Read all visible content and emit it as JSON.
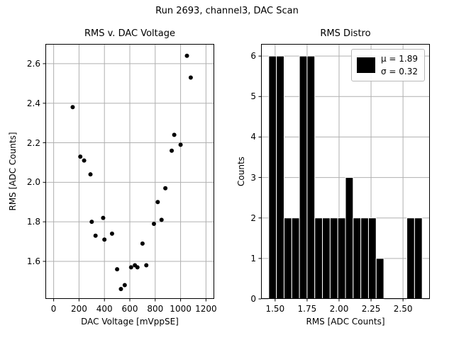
{
  "suptitle": "Run 2693, channel3, DAC Scan",
  "chart_data": [
    {
      "name": "rms-vs-dac",
      "type": "scatter",
      "title": "RMS v. DAC Voltage",
      "xlabel": "DAC Voltage [mVppSE]",
      "ylabel": "RMS [ADC Counts]",
      "xlim": [
        -65,
        1265
      ],
      "ylim": [
        1.41,
        2.7
      ],
      "xtick_values": [
        0,
        200,
        400,
        600,
        800,
        1000,
        1200
      ],
      "xtick_labels": [
        "0",
        "200",
        "400",
        "600",
        "800",
        "1000",
        "1200"
      ],
      "ytick_values": [
        1.6,
        1.8,
        2.0,
        2.2,
        2.4,
        2.6
      ],
      "ytick_labels": [
        "1.6",
        "1.8",
        "2.0",
        "2.2",
        "2.4",
        "2.6"
      ],
      "grid": true,
      "grid_color": "#b0b0b0",
      "marker_color": "#000000",
      "points": [
        [
          150,
          2.38
        ],
        [
          210,
          2.13
        ],
        [
          240,
          2.11
        ],
        [
          290,
          2.04
        ],
        [
          300,
          1.8
        ],
        [
          330,
          1.73
        ],
        [
          390,
          1.82
        ],
        [
          400,
          1.71
        ],
        [
          460,
          1.74
        ],
        [
          500,
          1.56
        ],
        [
          530,
          1.46
        ],
        [
          560,
          1.48
        ],
        [
          610,
          1.57
        ],
        [
          640,
          1.58
        ],
        [
          660,
          1.57
        ],
        [
          700,
          1.69
        ],
        [
          730,
          1.58
        ],
        [
          790,
          1.79
        ],
        [
          820,
          1.9
        ],
        [
          850,
          1.81
        ],
        [
          880,
          1.97
        ],
        [
          930,
          2.16
        ],
        [
          950,
          2.24
        ],
        [
          1000,
          2.19
        ],
        [
          1050,
          2.64
        ],
        [
          1080,
          2.53
        ]
      ]
    },
    {
      "name": "rms-distro",
      "type": "histogram",
      "title": "RMS Distro",
      "xlabel": "RMS [ADC Counts]",
      "ylabel": "Counts",
      "xlim": [
        1.39,
        2.71
      ],
      "ylim": [
        0,
        6.3
      ],
      "xtick_values": [
        1.5,
        1.75,
        2.0,
        2.25,
        2.5
      ],
      "xtick_labels": [
        "1.50",
        "1.75",
        "2.00",
        "2.25",
        "2.50"
      ],
      "ytick_values": [
        0,
        1,
        2,
        3,
        4,
        5,
        6
      ],
      "ytick_labels": [
        "0",
        "1",
        "2",
        "3",
        "4",
        "5",
        "6"
      ],
      "grid": true,
      "grid_color": "#b0b0b0",
      "bar_color": "#000000",
      "bar_edge_color": "#ffffff",
      "bins": {
        "start": 1.45,
        "width": 0.06,
        "counts": [
          6,
          6,
          2,
          2,
          6,
          6,
          2,
          2,
          2,
          2,
          3,
          2,
          2,
          2,
          1,
          0,
          0,
          0,
          2,
          2
        ]
      },
      "legend": {
        "patch_color": "#000000",
        "mu": 1.89,
        "sigma": 0.32,
        "lines": [
          "μ = 1.89",
          "σ = 0.32"
        ]
      }
    }
  ]
}
